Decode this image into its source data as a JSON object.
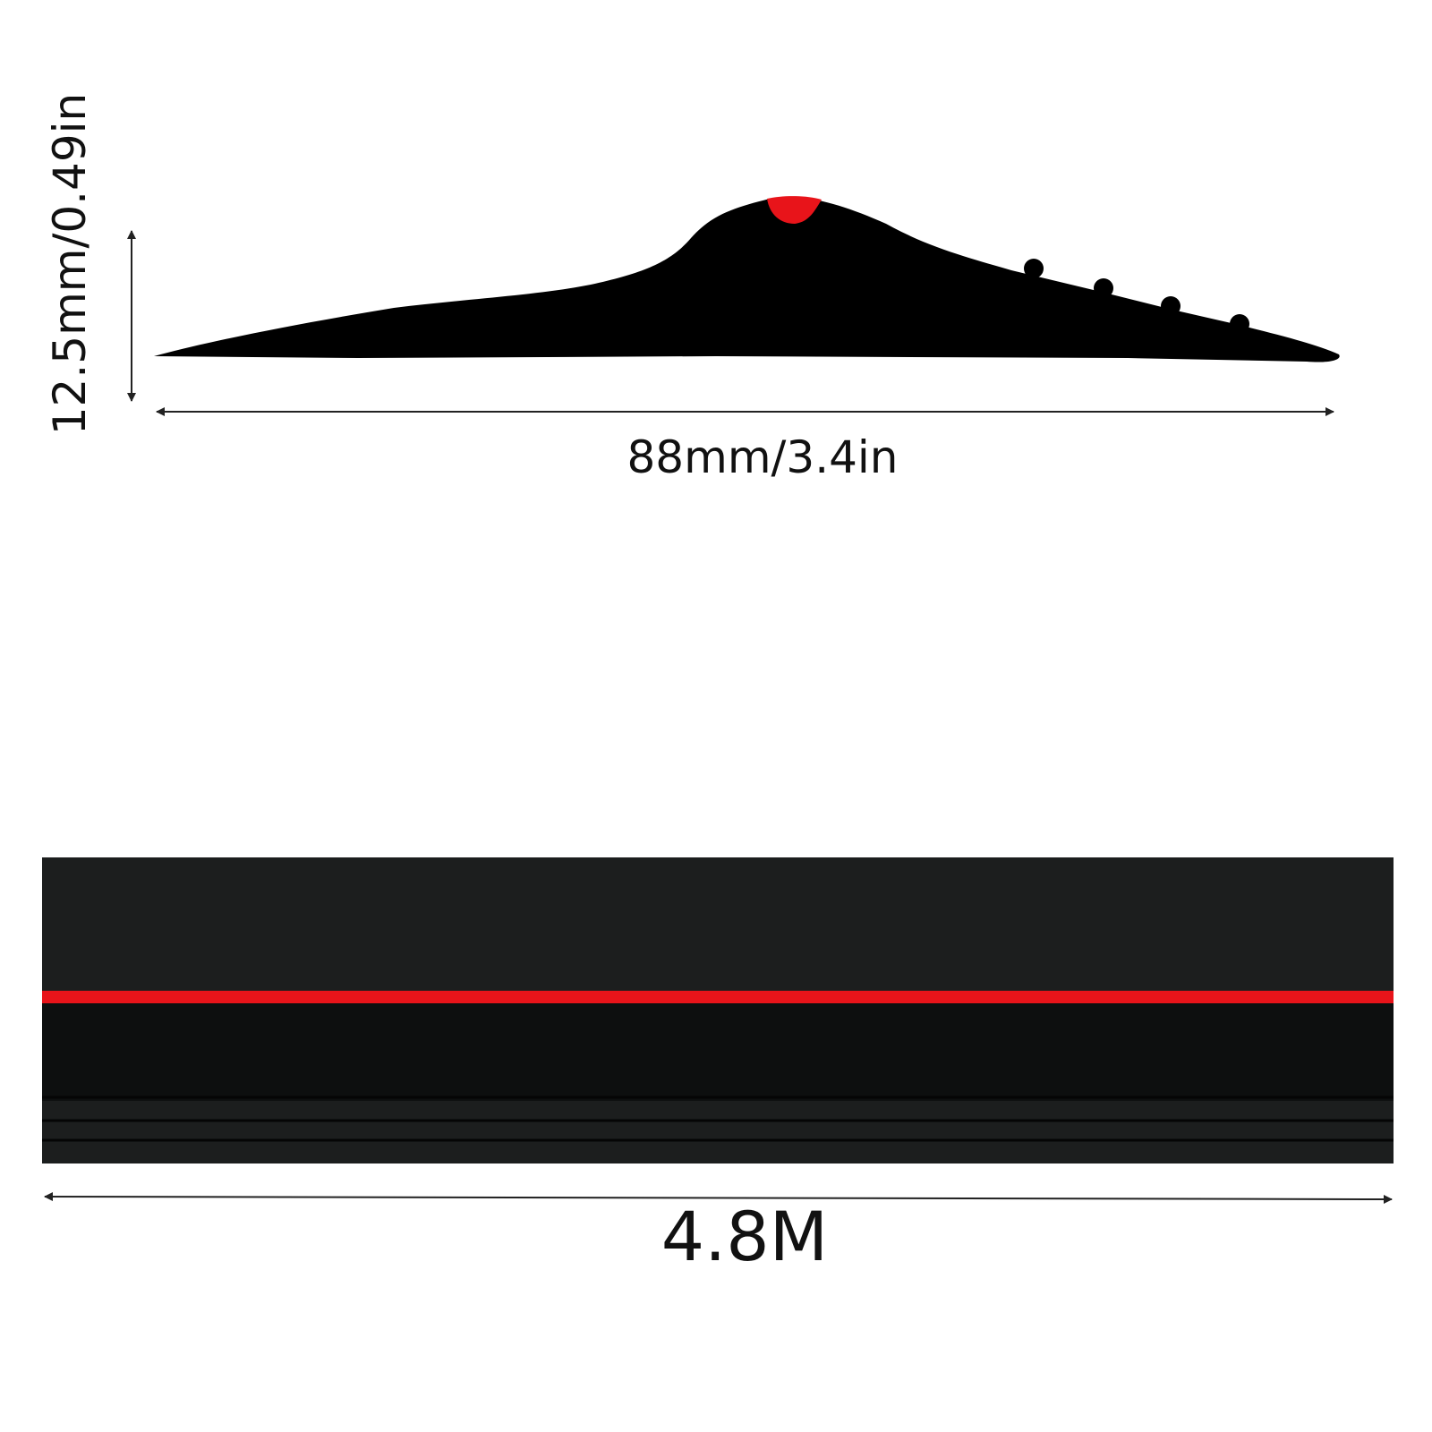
{
  "profile": {
    "height_label": "12.5mm/0.49in",
    "width_label": "88mm/3.4in"
  },
  "strip": {
    "length_label": "4.8M"
  }
}
